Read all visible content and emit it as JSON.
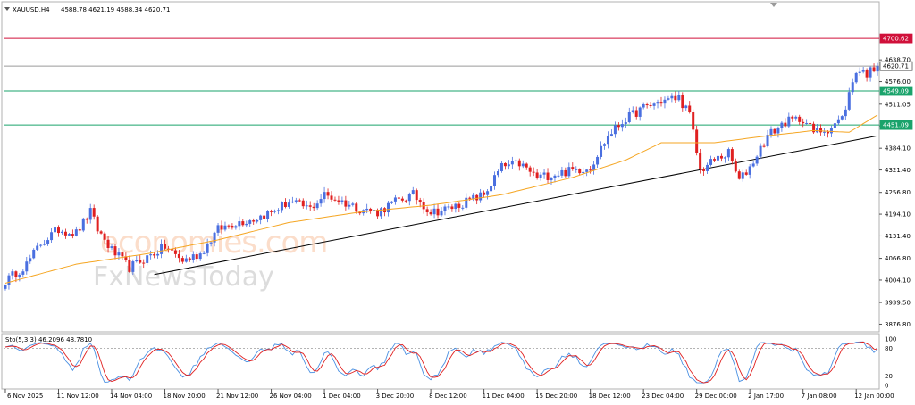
{
  "header": {
    "symbol": "XAUUSD,H4",
    "ohlc": "4588.78 4621.19 4588.34 4620.71"
  },
  "watermark": {
    "brand": "economies.com",
    "brand2": "FxNewsToday"
  },
  "colors": {
    "bull": "#4a6fe0",
    "bear": "#e02020",
    "ma": "#f5a623",
    "trend": "#000000",
    "support": "#1aa36b",
    "resistance": "#d0103a",
    "stoch_main": "#4a90e2",
    "stoch_signal": "#e02020"
  },
  "chart_data": {
    "type": "candlestick",
    "symbol": "XAUUSD",
    "timeframe": "H4",
    "ylim": [
      3860,
      4760
    ],
    "price_ticks": [
      "4638.70",
      "4576.00",
      "4511.05",
      "4448.70",
      "4384.10",
      "4321.40",
      "4256.80",
      "4194.10",
      "4131.40",
      "4066.80",
      "4004.10",
      "3939.50",
      "3876.80"
    ],
    "price_tick_values": [
      4638.7,
      4576.0,
      4511.05,
      4448.7,
      4384.1,
      4321.4,
      4256.8,
      4194.1,
      4131.4,
      4066.8,
      4004.1,
      3939.5,
      3876.8
    ],
    "time_labels": [
      "6 Nov 2025",
      "11 Nov 12:00",
      "14 Nov 04:00",
      "18 Nov 20:00",
      "21 Nov 12:00",
      "26 Nov 04:00",
      "1 Dec 04:00",
      "3 Dec 20:00",
      "8 Dec 12:00",
      "11 Dec 04:00",
      "15 Dec 20:00",
      "18 Dec 12:00",
      "23 Dec 04:00",
      "29 Dec 00:00",
      "2 Jan 17:00",
      "7 Jan 08:00",
      "12 Jan 00:00"
    ],
    "time_label_index": [
      0,
      15,
      30,
      45,
      60,
      75,
      90,
      105,
      120,
      135,
      150,
      165,
      180,
      195,
      210,
      225,
      240
    ],
    "bars": 247,
    "close_anchors": [
      [
        0,
        4000
      ],
      [
        6,
        4050
      ],
      [
        10,
        4110
      ],
      [
        15,
        4150
      ],
      [
        20,
        4140
      ],
      [
        24,
        4200
      ],
      [
        26,
        4150
      ],
      [
        30,
        4090
      ],
      [
        35,
        4040
      ],
      [
        40,
        4070
      ],
      [
        45,
        4100
      ],
      [
        50,
        4060
      ],
      [
        55,
        4080
      ],
      [
        60,
        4150
      ],
      [
        65,
        4170
      ],
      [
        70,
        4180
      ],
      [
        75,
        4200
      ],
      [
        80,
        4230
      ],
      [
        86,
        4210
      ],
      [
        90,
        4250
      ],
      [
        95,
        4230
      ],
      [
        100,
        4210
      ],
      [
        105,
        4200
      ],
      [
        110,
        4230
      ],
      [
        115,
        4250
      ],
      [
        120,
        4200
      ],
      [
        125,
        4210
      ],
      [
        130,
        4230
      ],
      [
        135,
        4250
      ],
      [
        140,
        4330
      ],
      [
        145,
        4340
      ],
      [
        150,
        4300
      ],
      [
        155,
        4310
      ],
      [
        160,
        4320
      ],
      [
        165,
        4330
      ],
      [
        170,
        4420
      ],
      [
        175,
        4470
      ],
      [
        180,
        4500
      ],
      [
        185,
        4520
      ],
      [
        190,
        4530
      ],
      [
        193,
        4480
      ],
      [
        196,
        4320
      ],
      [
        200,
        4350
      ],
      [
        204,
        4370
      ],
      [
        207,
        4290
      ],
      [
        210,
        4330
      ],
      [
        215,
        4420
      ],
      [
        220,
        4460
      ],
      [
        225,
        4470
      ],
      [
        228,
        4430
      ],
      [
        232,
        4440
      ],
      [
        236,
        4470
      ],
      [
        240,
        4610
      ],
      [
        243,
        4600
      ],
      [
        246,
        4620.71
      ]
    ],
    "moving_average": {
      "anchors": [
        [
          0,
          3995
        ],
        [
          20,
          4050
        ],
        [
          40,
          4080
        ],
        [
          60,
          4120
        ],
        [
          80,
          4170
        ],
        [
          100,
          4200
        ],
        [
          120,
          4220
        ],
        [
          140,
          4250
        ],
        [
          160,
          4300
        ],
        [
          175,
          4350
        ],
        [
          185,
          4400
        ],
        [
          200,
          4400
        ],
        [
          215,
          4420
        ],
        [
          228,
          4435
        ],
        [
          238,
          4430
        ],
        [
          246,
          4480
        ]
      ]
    },
    "trendline": {
      "from": [
        42,
        4020
      ],
      "to": [
        246,
        4420
      ]
    },
    "levels": [
      {
        "label": "4700.62",
        "value": 4700.62,
        "kind": "resistance"
      },
      {
        "label": "4620.71",
        "value": 4620.71,
        "kind": "current"
      },
      {
        "label": "4549.09",
        "value": 4549.09,
        "kind": "support"
      },
      {
        "label": "4451.09",
        "value": 4451.09,
        "kind": "support"
      }
    ],
    "stochastic": {
      "title": "Sto(5,3,3) 46.2096 48.7810",
      "ylim": [
        0,
        100
      ],
      "ticks": [
        "100",
        "80",
        "20",
        "0"
      ],
      "tick_values": [
        100,
        80,
        20,
        0
      ],
      "levels": [
        80,
        20
      ]
    }
  }
}
